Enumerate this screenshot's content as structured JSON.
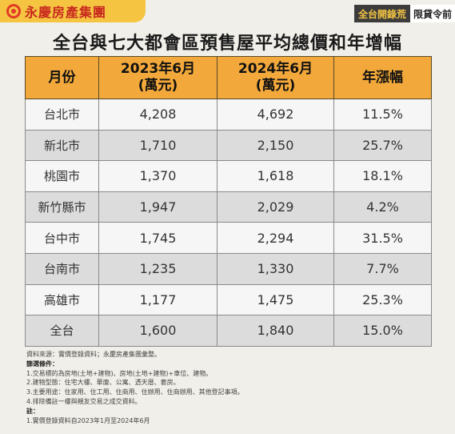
{
  "header": {
    "brand": "永慶房產集團",
    "tag_a": "全台開錄荒",
    "tag_b": "限貸令前"
  },
  "title": "全台與七大都會區預售屋平均總價和年增幅",
  "table": {
    "headers": [
      {
        "line1": "月份",
        "line2": ""
      },
      {
        "line1": "2023年6月",
        "line2": "(萬元)"
      },
      {
        "line1": "2024年6月",
        "line2": "(萬元)"
      },
      {
        "line1": "年漲幅",
        "line2": ""
      }
    ],
    "rows": [
      [
        "台北市",
        "4,208",
        "4,692",
        "11.5%"
      ],
      [
        "新北市",
        "1,710",
        "2,150",
        "25.7%"
      ],
      [
        "桃園市",
        "1,370",
        "1,618",
        "18.1%"
      ],
      [
        "新竹縣市",
        "1,947",
        "2,029",
        "4.2%"
      ],
      [
        "台中市",
        "1,745",
        "2,294",
        "31.5%"
      ],
      [
        "台南市",
        "1,235",
        "1,330",
        "7.7%"
      ],
      [
        "高雄市",
        "1,177",
        "1,475",
        "25.3%"
      ],
      [
        "全台",
        "1,600",
        "1,840",
        "15.0%"
      ]
    ]
  },
  "notes": {
    "source": "資料來源：實價登錄資料；永慶房產集團彙整。",
    "criteria_head": "篩選條件：",
    "criteria": [
      "1.交易標的為房地(土地+建物)、房地(土地+建物)+車位、建物。",
      "2.建物型態：住宅大樓、華廈、公寓、透天厝、套房。",
      "3.主要用途：住家用、住工用、住商用、住辦用、住商辦用、其他登記事項。",
      "4.排除備註一樓與親友交易之成交資料。"
    ],
    "note_head": "註：",
    "note": "1.實價登錄資料自2023年1月至2024年6月"
  }
}
